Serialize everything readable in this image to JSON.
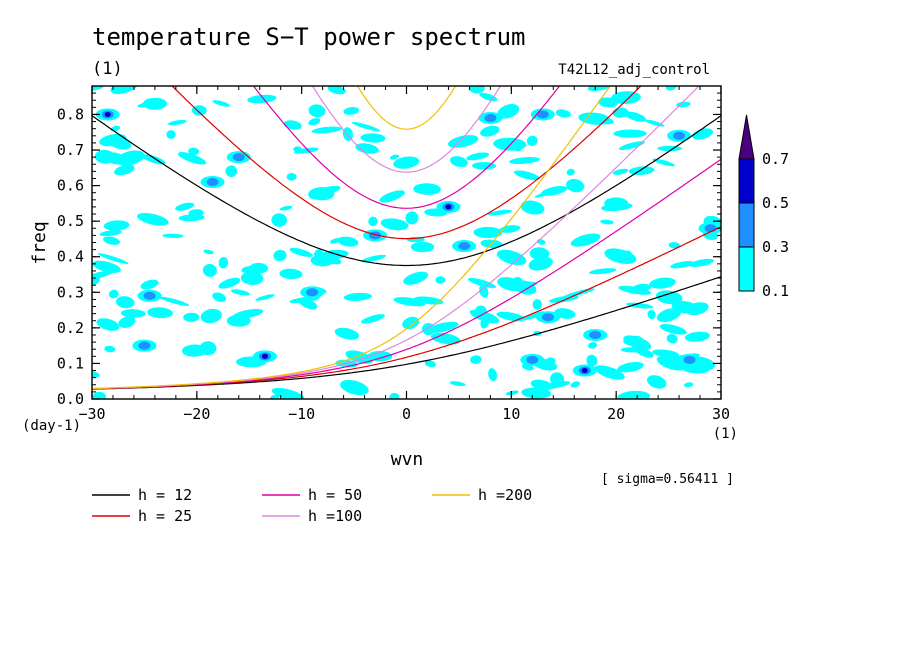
{
  "header": {
    "title": "temperature S−T power spectrum",
    "subtitle": "(1)",
    "run_label": "T42L12_adj_control",
    "sigma_note": "[ sigma=0.56411 ]"
  },
  "chart_data": {
    "type": "heatmap",
    "xlabel": "wvn",
    "ylabel": "freq",
    "x_unit": "(1)",
    "y_unit": "(day-1)",
    "xlim": [
      -30,
      30
    ],
    "ylim": [
      0,
      0.88
    ],
    "x_ticks": [
      -30,
      -20,
      -10,
      0,
      10,
      20,
      30
    ],
    "x_tick_labels": [
      "−30",
      "−20",
      "−10",
      "0",
      "10",
      "20",
      "30"
    ],
    "y_ticks": [
      0.0,
      0.1,
      0.2,
      0.3,
      0.4,
      0.5,
      0.6,
      0.7,
      0.8
    ],
    "y_tick_labels": [
      "0.0",
      "0.1",
      "0.2",
      "0.3",
      "0.4",
      "0.5",
      "0.6",
      "0.7",
      "0.8"
    ],
    "colorbar": {
      "levels": [
        0.1,
        0.3,
        0.5,
        0.7
      ],
      "labels": [
        "0.1",
        "0.3",
        "0.5",
        "0.7"
      ],
      "colors": [
        "#00ffff",
        "#1e90ff",
        "#0000cd",
        "#4b0082"
      ]
    },
    "dispersion_series": [
      {
        "name": "h = 12",
        "h": 12,
        "color": "#000000"
      },
      {
        "name": "h = 25",
        "h": 25,
        "color": "#dd0000"
      },
      {
        "name": "h = 50",
        "h": 50,
        "color": "#dd00aa"
      },
      {
        "name": "h =100",
        "h": 100,
        "color": "#dd88dd"
      },
      {
        "name": "h =200",
        "h": 200,
        "color": "#f0c000"
      }
    ],
    "spectrum_blobs": [
      {
        "x": -28.5,
        "y": 0.8,
        "level": 0.5
      },
      {
        "x": -24,
        "y": 0.83,
        "level": 0.1
      },
      {
        "x": -18.5,
        "y": 0.61,
        "level": 0.3
      },
      {
        "x": -16,
        "y": 0.68,
        "level": 0.3
      },
      {
        "x": -25,
        "y": 0.15,
        "level": 0.3
      },
      {
        "x": -24.5,
        "y": 0.29,
        "level": 0.3
      },
      {
        "x": -16,
        "y": 0.22,
        "level": 0.1
      },
      {
        "x": -13.5,
        "y": 0.12,
        "level": 0.5
      },
      {
        "x": -9,
        "y": 0.3,
        "level": 0.3
      },
      {
        "x": -8,
        "y": 0.39,
        "level": 0.1
      },
      {
        "x": -3,
        "y": 0.46,
        "level": 0.3
      },
      {
        "x": 4,
        "y": 0.54,
        "level": 0.5
      },
      {
        "x": 5.5,
        "y": 0.43,
        "level": 0.3
      },
      {
        "x": 8,
        "y": 0.79,
        "level": 0.3
      },
      {
        "x": 13,
        "y": 0.8,
        "level": 0.3
      },
      {
        "x": 12,
        "y": 0.11,
        "level": 0.3
      },
      {
        "x": 13.5,
        "y": 0.23,
        "level": 0.3
      },
      {
        "x": 18,
        "y": 0.18,
        "level": 0.3
      },
      {
        "x": 17,
        "y": 0.08,
        "level": 0.5
      },
      {
        "x": 20,
        "y": 0.55,
        "level": 0.1
      },
      {
        "x": 26,
        "y": 0.74,
        "level": 0.3
      },
      {
        "x": 29,
        "y": 0.48,
        "level": 0.3
      },
      {
        "x": 27,
        "y": 0.11,
        "level": 0.3
      }
    ]
  }
}
